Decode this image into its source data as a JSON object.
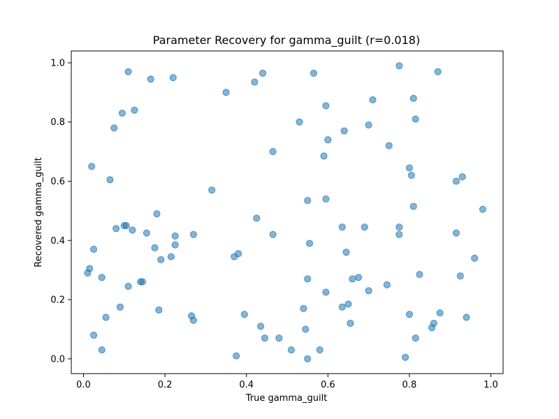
{
  "chart_data": {
    "type": "scatter",
    "title": "Parameter Recovery for gamma_guilt (r=0.018)",
    "xlabel": "True gamma_guilt",
    "ylabel": "Recovered gamma_guilt",
    "xlim": [
      -0.03,
      1.03
    ],
    "ylim": [
      -0.05,
      1.04
    ],
    "xticks": [
      "0.0",
      "0.2",
      "0.4",
      "0.6",
      "0.8",
      "1.0"
    ],
    "yticks": [
      "0.0",
      "0.2",
      "0.4",
      "0.6",
      "0.8",
      "1.0"
    ],
    "grid": false,
    "marker_color": "#1f77b4",
    "points": [
      [
        0.01,
        0.29
      ],
      [
        0.015,
        0.305
      ],
      [
        0.02,
        0.65
      ],
      [
        0.025,
        0.37
      ],
      [
        0.025,
        0.08
      ],
      [
        0.045,
        0.03
      ],
      [
        0.045,
        0.275
      ],
      [
        0.055,
        0.14
      ],
      [
        0.065,
        0.605
      ],
      [
        0.075,
        0.78
      ],
      [
        0.08,
        0.44
      ],
      [
        0.09,
        0.175
      ],
      [
        0.095,
        0.83
      ],
      [
        0.1,
        0.45
      ],
      [
        0.105,
        0.45
      ],
      [
        0.11,
        0.245
      ],
      [
        0.11,
        0.97
      ],
      [
        0.12,
        0.435
      ],
      [
        0.125,
        0.84
      ],
      [
        0.14,
        0.26
      ],
      [
        0.145,
        0.26
      ],
      [
        0.155,
        0.425
      ],
      [
        0.165,
        0.945
      ],
      [
        0.175,
        0.375
      ],
      [
        0.18,
        0.49
      ],
      [
        0.185,
        0.165
      ],
      [
        0.19,
        0.335
      ],
      [
        0.215,
        0.345
      ],
      [
        0.22,
        0.95
      ],
      [
        0.225,
        0.415
      ],
      [
        0.225,
        0.385
      ],
      [
        0.265,
        0.145
      ],
      [
        0.27,
        0.13
      ],
      [
        0.27,
        0.42
      ],
      [
        0.315,
        0.57
      ],
      [
        0.35,
        0.9
      ],
      [
        0.37,
        0.345
      ],
      [
        0.375,
        0.01
      ],
      [
        0.38,
        0.355
      ],
      [
        0.395,
        0.15
      ],
      [
        0.42,
        0.935
      ],
      [
        0.425,
        0.475
      ],
      [
        0.435,
        0.11
      ],
      [
        0.44,
        0.965
      ],
      [
        0.445,
        0.07
      ],
      [
        0.465,
        0.7
      ],
      [
        0.465,
        0.42
      ],
      [
        0.48,
        0.07
      ],
      [
        0.51,
        0.03
      ],
      [
        0.53,
        0.8
      ],
      [
        0.54,
        0.17
      ],
      [
        0.545,
        0.1
      ],
      [
        0.55,
        0.535
      ],
      [
        0.55,
        0.27
      ],
      [
        0.55,
        0.0
      ],
      [
        0.555,
        0.39
      ],
      [
        0.565,
        0.965
      ],
      [
        0.58,
        0.03
      ],
      [
        0.59,
        0.685
      ],
      [
        0.595,
        0.855
      ],
      [
        0.595,
        0.225
      ],
      [
        0.595,
        0.54
      ],
      [
        0.6,
        0.74
      ],
      [
        0.635,
        0.445
      ],
      [
        0.635,
        0.175
      ],
      [
        0.64,
        0.77
      ],
      [
        0.645,
        0.36
      ],
      [
        0.65,
        0.185
      ],
      [
        0.655,
        0.12
      ],
      [
        0.66,
        0.27
      ],
      [
        0.675,
        0.275
      ],
      [
        0.69,
        0.445
      ],
      [
        0.7,
        0.79
      ],
      [
        0.7,
        0.23
      ],
      [
        0.71,
        0.875
      ],
      [
        0.745,
        0.25
      ],
      [
        0.75,
        0.72
      ],
      [
        0.775,
        0.42
      ],
      [
        0.775,
        0.445
      ],
      [
        0.775,
        0.99
      ],
      [
        0.79,
        0.005
      ],
      [
        0.8,
        0.645
      ],
      [
        0.8,
        0.15
      ],
      [
        0.805,
        0.62
      ],
      [
        0.81,
        0.88
      ],
      [
        0.81,
        0.515
      ],
      [
        0.815,
        0.81
      ],
      [
        0.815,
        0.07
      ],
      [
        0.825,
        0.285
      ],
      [
        0.855,
        0.105
      ],
      [
        0.86,
        0.12
      ],
      [
        0.87,
        0.97
      ],
      [
        0.875,
        0.155
      ],
      [
        0.915,
        0.425
      ],
      [
        0.915,
        0.6
      ],
      [
        0.925,
        0.28
      ],
      [
        0.93,
        0.615
      ],
      [
        0.94,
        0.14
      ],
      [
        0.96,
        0.34
      ],
      [
        0.98,
        0.505
      ]
    ]
  }
}
